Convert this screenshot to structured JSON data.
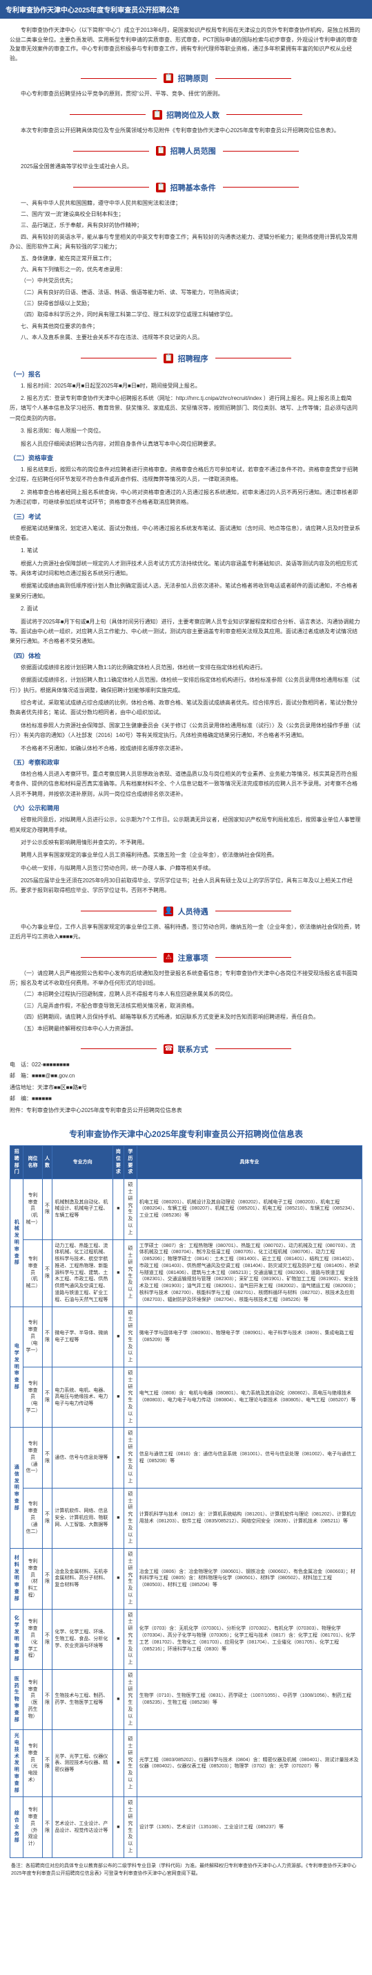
{
  "title_bar": "专利审查协作天津中心2025年度专利审查员公开招聘公告",
  "intro": "专利审查协作天津中心（以下简称\"中心\"）成立于2013年6月，是国家知识产权局专利局在天津设立的京外专利审查协作机构，是独立核算的公益二类事业单位。主要负责发明、实用新型专利申请的实质审查、形式审查，PCT国际申请的国际检索与初步审查，外观设计专利申请的审查及复审无效案件的审查工作。中心专利审查员积极参与专利审查工作，拥有专利代理师等职业资格，通过多年积累拥有丰富的知识产权从业经验。",
  "sections": {
    "principle": {
      "title": "招聘原则",
      "icon": "📋",
      "body": "中心专利审查员招聘坚持公平竞争的原则，贯彻\"公开、平等、竞争、择优\"的原则。"
    },
    "positions": {
      "title": "招聘岗位及人数",
      "icon": "📋",
      "body": "本次专利审查员公开招聘具体岗位及专业所属领域分布见附件《专利审查协作天津中心2025年度专利审查员公开招聘岗位信息表》。"
    },
    "scope": {
      "title": "招聘人员范围",
      "icon": "📋",
      "body": "2025届全国普通高等学校毕业生或社会人员。"
    },
    "requirements": {
      "title": "招聘基本条件",
      "icon": "📋",
      "items": [
        "一、具有中华人民共和国国籍，遵守中华人民共和国宪法和法律；",
        "二、国内\"双一流\"建设高校全日制本科生；",
        "三、品行端正，乐于奉献，具有良好的协作精神；",
        "四、具有较好的英语水平，能从事与专里相关的中英文专利审查工作；具有较好的沟通表达能力、逻辑分析能力；能熟练使用计算机及常用办公、图形软件工具；具有较强的学习能力；",
        "五、身体健康，能在岗正常开展工作；",
        "六、具有下列情形之一的，优先考虑录用：",
        "（一）中共党员优先；",
        "（二）具有良好的日语、德语、法语、韩语、俄语等能力听、读、写等能力，可熟练阅读；",
        "（三）获得省部级以上奖励；",
        "（四）取得本科学历之外，同时具有理工科第二学位、理工科双学位或理工科辅修学位。",
        "七、具有其他岗位要求的条件；",
        "八、本人及直系亲属、主要社会关系不存在违法、违规等不良记录的人员。"
      ]
    },
    "procedure": {
      "title": "招聘程序",
      "icon": "📋",
      "steps": [
        {
          "head": "（一）报名",
          "paras": [
            "1. 报名时间：2025年■月■日起至2025年■月■日■时，期间接受网上报名。",
            "2. 报名方式：登录专利审查协作天津中心招聘报名系统（网址：http://hrrc.tj.cnipa/zhrc/recruit/index ）进行网上报名。网上报名须上载简历，填写个人基本信息及学习经历、教育背景、获奖情况、家庭成员、奖惩情况等，按照招聘部门、岗位类别、填写、上传等情；且必须勾选同一岗位类别的内容。",
            "3. 报名须知：每人限报一个岗位。",
            "报名人员应仔细阅读招聘公告内容，对照自身条件认真填写本中心岗位招聘要求。",
            "（二）资格审查",
            "1. 报名结束后，按照公布的岗位条件对应聘者进行资格审查。资格审查合格后方可参加考试，若审查不通过条件不符。资格审查贯穿于招聘全过程，在招聘任何环节发现不符合条件或弄虚作假、违规舞弊等情况的人员，一律取消资格。",
            "2. 资格审查合格者经网上报名系统查询，中心将对资格审查通过的人员通过报名系统通知，初审未通过的人员不再另行通知。通过审核者即为通过初审，可继续参加后续考试环节；资格审查不合格者取消应聘资格。",
            "（三）考试",
            "根据笔试结果情况，划定进入笔试、面试分数线，中心将通过报名系统发布笔试、面试通知（含时间、地点等信息），请应聘人员及时登录系统查看。",
            "1. 笔试",
            "根据人力资源社会保障部统一规定的人才测评技术人员考试方式方法持续优化。笔试内容涵盖专利基础知识、英语等测试内容及的相应形式等。具体考试时间和地点通过报名系统另行通知。",
            "根据笔试成绩由高到低顺序按计划人数比例确定面试人选，无法参加人员依次递补。笔试合格者将收到电话或者邮件的面试通知，不合格者鉴果另行通知。",
            "2. 面试",
            "面试将于2025年■月下旬或■月上旬（具体时间另行通知）进行，主要考察应聘人员专业知识掌握程度和综合分析、语言表达、沟通协调能力等。面试由中心统一组织，对应聘人员工作能力、中心统一测试，测试内容主要涵盖专利审查相关法规及其应用。面试通过者成绩及考试情况结果另行通知。不合格者不受另通知。",
            "（四）体检",
            "依据面试成绩排名按计划招聘人数1:1的比例确定体检人员范围，体检统一安排在指定体检机构进行。",
            "依据面试成绩排名，计划招聘人数1:1确定体检人员范围，体检统一安排后指定体检机构进行。体检标准参照《公务员录用体检通用标准（试行）》执行。根据具体情况适当调整，确保招聘计划能够顺利实施完成。",
            "综合考试，采取笔试成绩占综合成绩的比例，体检合格、政审合格、笔试及面试成绩高者优先。综合排序后，面试分数相同者，笔试分数分数高者优先排名；笔试、面试分数均相同者，由中心组织加试。",
            "体检标准参照人力资源社会保障部、国家卫生健康委员会《关于修订〈公务员录用体检通用标准（试行）〉及〈公务员录用体检操作手册（试行）〉有关内容的通知》（人社部发〔2016〕140号）等有关规定执行。凡体检资格确定结果另行通知，不合格者不另通知。",
            "不合格者不另通知，如确认体检不合格，按成绩排名顺序依次递补。",
            "（五）考察和政审",
            "体检合格人员进入考察环节。重点考察应聘人员思想政治表现、道德品质以及与岗位相关的专业素养、业务能力等情况，核实其是否符合报考条件、提供的信息和材料是否真实准确等。凡有档案材料不全、个人信息记载不一致等情况无法完成审核的应聘人员不予录用。对考察不合格人员不予聘用，并按依次递补原则，从同一岗位综合成绩排名依次递补。",
            "（六）公示和聘用",
            "经审批同意后，对拟聘用人员进行公示，公示期为7个工作日。公示期满无异议者，经国家知识产权局专利局批准后，按照事业单位人事管理相关规定办理聘用手续。",
            "对于公示反映有影响聘用情形并查实的，不予聘用。",
            "聘用人员享有国家规定的事业单位人员工资福利待遇。实缴五险一金（企业年金），依法缴纳社会保险费。",
            "中心统一安排，与拟聘用人员签订劳动合同，统一办理人事、户籍等相关手续。",
            "2025届应届毕业生还须在2025年9月30日前取得毕业、学历学位证书；社会人员具有硕士及以上的学历学位，具有三年及以上相关工作经历。要求于报到前取得相应毕业、学历学位证书，否则不予聘用。"
          ]
        }
      ]
    },
    "benefits": {
      "title": "人员待遇",
      "icon": "👤",
      "body": "中心为事业单位，工作人员享有国家规定的事业单位工资、福利待遇，签订劳动合同，缴纳五险一金（企业年金），依法缴纳社会保险费，转正后月平均工资收入■■■■元。"
    },
    "notes": {
      "title": "注意事项",
      "icon": "⚠",
      "items": [
        "（一）请应聘人员严格按照公告和中心发布的后续通知及时登录报名系统查看信息；专利审查协作天津中心各岗位不接受现场报名或书面简历；报名及考试不收取任何费用。不举办任何形式的培训班。",
        "（二）本招聘全过程执行回避制度，应聘人员不得报考与本人有应回避亲属关系的岗位。",
        "（三）凡是弄虚作假，不配合审查导致无法核实相关情况者，取消资格。",
        "（四）招聘期间，请应聘人员保持手机、邮箱等联系方式畅通，如因联系方式变更未及时告知而影响招聘进程，责任自负。",
        "（五）本招聘最终解释权归本中心人力资源部。"
      ]
    },
    "contact": {
      "title": "联系方式",
      "icon": "☎",
      "lines": [
        "电　话：022-■■■■■■■■",
        "邮　箱：■■■■@■■.gov.cn",
        "通信地址：天津市■■区■■路■号",
        "邮　编：■■■■■■",
        "附件：专利审查协作天津中心2025年度专利审查员公开招聘岗位信息表"
      ]
    }
  },
  "table": {
    "title": "专利审查协作天津中心2025年度专利审查员公开招聘岗位信息表",
    "headers": [
      "招聘部门",
      "岗位名称",
      "人数",
      "专业方向",
      "岗位要求",
      "学历要求",
      "具体专业"
    ],
    "rows": [
      {
        "dept": "机械发明审查部",
        "rowspan": 2,
        "cells": [
          [
            "专利审查员（机械一）",
            "不限",
            "机械制造及其自动化、机械设计、机械电子工程、车辆工程等",
            "■",
            "硕士研究生及以上",
            "机电工程（080201）、机械设计及其自动理论（080202）、机械电子工程（080203）、机电工程（080204）、车辆工程（080207）、机械工程（085201）、机电工程（085210）、车辆工程（085234）、工业工程（085236）等"
          ],
          [
            "专利审查员（机械二）",
            "不限",
            "动力工程、热能工程、流体机械、化工过程机械、核科学与技术、航空宇航推进、工程热物理、新能源科学与工程、建筑、土木工程、市政工程、供热供燃气通风及空调工程、道路与铁道工程、矿业工程、石油与天然气工程等",
            "■",
            "硕士研究生及以上",
            "工学硕士（0807）含：工程热物理（080701）、热能工程（080702）、动力机械及工程（080703）、流体机械及工程（080704）、制冷及低温工程（080705）、化工过程机械（080706）、动力工程（085206）；物理学硕士（0814）：土木工程（081400）、岩土工程（081401）、结构工程（081402）、市政工程（081403）、供热燃气通风及空调工程（081404）、防灾减灾工程及防护工程（081405）、桥梁与隧道工程（081406）、建筑与土木工程（085213）；交通运输工程（082300）、道路与铁道工程（082301）、交通运输规划与管理（082303）；采矿工程（081901）、矿物加工工程（081902）、安全技术及工程（081903）；油气井工程（082001）、油气田开发工程（082002）、油气储运工程（082003）；核科学与技术（082700）、核能科学与工程（082701）、核燃料循环与材料（082702）、核技术及应用（082703）、辐射防护及环境保护（082704）、核能与核技术工程（085226）等"
          ]
        ]
      },
      {
        "dept": "电学发明审查部",
        "rowspan": 2,
        "cells": [
          [
            "专利审查员（电学一）",
            "不限",
            "微电子学、半导体、微纳电子工程等",
            "■",
            "硕士研究生及以上",
            "微电子学与固体电子学（080903）、物理电子学（080901）、电子科学与技术（0809）、集成电路工程（085209）等"
          ],
          [
            "专利审查员（电学二）",
            "不限",
            "电力系统、电机、电器、高电压与绝缘技术、电力电子与电力传动等",
            "■",
            "硕士研究生及以上",
            "电气工程（0808）含：电机与电器（080801）、电力系统及其自动化（080802）、高电压与绝缘技术（080803）、电力电子与电力传动（080804）、电工理论与新技术（080805）、电气工程（085207）等"
          ]
        ]
      },
      {
        "dept": "通信发明审查部",
        "rowspan": 2,
        "cells": [
          [
            "专利审查员（通信一）",
            "不限",
            "通信、信号与信息处理等",
            "■",
            "硕士研究生及以上",
            "信息与通信工程（0810）含：通信与信息系统（081001）、信号与信息处理（081002）、电子与通信工程（085208）等"
          ],
          [
            "专利审查员（通信二）",
            "不限",
            "计算机软件、网络、信息安全、计算机应用、物联网、人工智能、大数据等",
            "■",
            "硕士研究生及以上",
            "计算机科学与技术（0812）含：计算机系统结构（081201）、计算机软件与理论（081202）、计算机应用技术（081203）、软件工程（0835/085212）、网络空间安全（0839）、计算机技术（085211）等"
          ]
        ]
      },
      {
        "dept": "材料发明审查部",
        "rowspan": 1,
        "cells": [
          [
            "专利审查员（材料工程）",
            "不限",
            "冶金及金属材料、无机非金属材料、高分子材料、复合材料等",
            "■",
            "硕士研究生及以上",
            "冶金工程（0806）含：冶金物理化学（080601）、钢铁冶金（080602）、有色金属冶金（080603）；材料科学与工程（0805）含：材料物理与化学（080501）、材料学（080502）、材料加工工程（080503）、材料工程（085204）等"
          ]
        ]
      },
      {
        "dept": "化学发明审查部",
        "rowspan": 1,
        "cells": [
          [
            "专利审查员（化学工程）",
            "不限",
            "化学、化学工程、环境、生物工程、食品、分析化学、农业资源与环境等",
            "■",
            "硕士研究生及以上",
            "化学（0703）含：无机化学（070301）、分析化学（070302）、有机化学（070303）、物理化学（070304）、高分子化学与物理（070305）；化学工程与技术（0817）含：化学工程（081701）、化学工艺（081702）、生物化工（081703）、应用化学（081704）、工业催化（081705）、化学工程（085216）；环境科学与工程（0830）等"
          ]
        ]
      },
      {
        "dept": "医药生物审查部",
        "rowspan": 1,
        "cells": [
          [
            "专利审查员（医药生物）",
            "不限",
            "生物技术与工程、制药、药学、生物医学工程等",
            "■",
            "硕士研究生及以上",
            "生物学（0710）、生物医学工程（0831）、药学硕士（1007/1055）、中药学（1008/1056）、制药工程（085235）、生物工程（085238）等"
          ]
        ]
      },
      {
        "dept": "光电技术发明审查部",
        "rowspan": 1,
        "cells": [
          [
            "专利审查员（光电技术）",
            "不限",
            "光学、光学工程、仪器仪表、测控技术与仪器、精密仪器等",
            "■",
            "硕士研究生及以上",
            "光学工程（0803/085202）、仪器科学与技术（0804）含：精密仪器及机械（080401）、测试计量技术及仪器（080402）、仪器仪表工程（085203）；物理学（0702）含：光学（070207）等"
          ]
        ]
      },
      {
        "dept": "综合业务部",
        "rowspan": 1,
        "cells": [
          [
            "专利审查员（外观设计）",
            "不限",
            "艺术设计、工业设计、产品设计、视觉传达设计等",
            "■",
            "硕士研究生及以上",
            "设计学（1305）、艺术设计（135108）、工业设计工程（085237）等"
          ]
        ]
      }
    ],
    "footnote": "备注：各招聘岗位对应的具体专业以教育部公布的二级学科专业目录（学科代码）为准。最终解释权归专利审查协作天津中心人力资源部。《专利审查协作天津中心2025年度专利审查员公开招聘岗位信息表》可登录专利审查协作天津中心官网查阅下载。"
  },
  "colors": {
    "primary": "#2b5797",
    "accent": "#c00000",
    "border": "#3a6db5"
  }
}
